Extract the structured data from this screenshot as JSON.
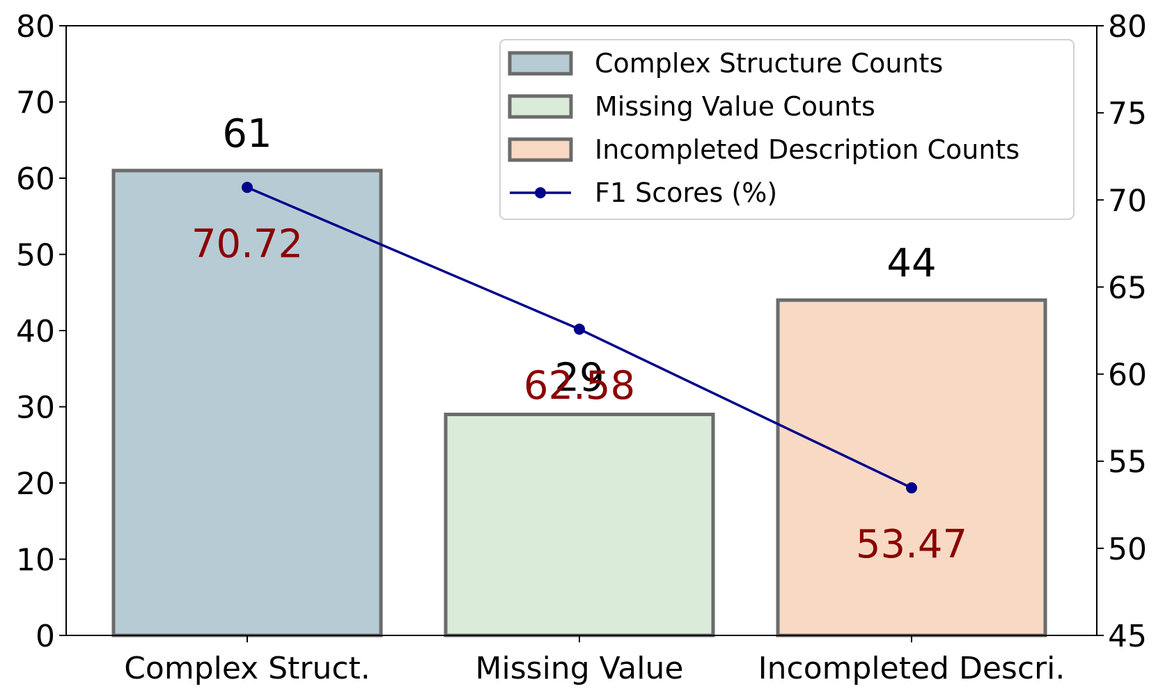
{
  "chart_data": {
    "type": "bar",
    "categories": [
      "Complex Struct.",
      "Missing Value",
      "Incompleted Descri."
    ],
    "series": [
      {
        "name": "Complex Structure Counts / Missing Value Counts / Incompleted Description Counts",
        "values": [
          61,
          29,
          44
        ],
        "value_labels": [
          "61",
          "29",
          "44"
        ],
        "colors": [
          "#b7cbd5",
          "#dbebd9",
          "#f7d9c4"
        ]
      },
      {
        "name": "F1 Scores (%)",
        "type": "line",
        "axis": "right",
        "values": [
          70.72,
          62.58,
          53.47
        ],
        "value_labels": [
          "70.72",
          "62.58",
          "53.47"
        ],
        "color": "#00008b",
        "label_color": "#8b0000"
      }
    ],
    "left_axis": {
      "ylim": [
        0,
        80
      ],
      "ticks": [
        "0",
        "10",
        "20",
        "30",
        "40",
        "50",
        "60",
        "70",
        "80"
      ]
    },
    "right_axis": {
      "ylim": [
        45,
        80
      ],
      "ticks": [
        "45",
        "50",
        "55",
        "60",
        "65",
        "70",
        "75",
        "80"
      ]
    },
    "legend": {
      "position": "top-right",
      "entries": [
        {
          "label": "Complex Structure Counts",
          "kind": "bar",
          "color": "#b7cbd5"
        },
        {
          "label": "Missing Value Counts",
          "kind": "bar",
          "color": "#dbebd9"
        },
        {
          "label": "Incompleted Description Counts",
          "kind": "bar",
          "color": "#f7d9c4"
        },
        {
          "label": "F1 Scores (%)",
          "kind": "line",
          "color": "#00008b"
        }
      ]
    },
    "grid": false
  }
}
